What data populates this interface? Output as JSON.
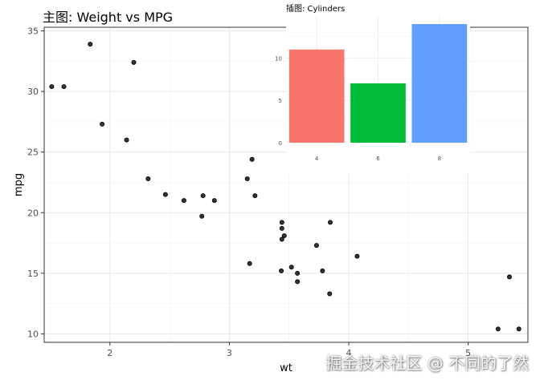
{
  "chart_data": [
    {
      "type": "scatter",
      "title": "主图: Weight vs MPG",
      "xlabel": "wt",
      "ylabel": "mpg",
      "xlim": [
        1.45,
        5.5
      ],
      "ylim": [
        9.3,
        35.3
      ],
      "xticks": [
        2,
        3,
        4,
        5
      ],
      "yticks": [
        10,
        15,
        20,
        25,
        30,
        35
      ],
      "grid": true,
      "point_color": "#333333",
      "points": [
        {
          "x": 1.513,
          "y": 30.4
        },
        {
          "x": 1.615,
          "y": 30.4
        },
        {
          "x": 1.835,
          "y": 33.9
        },
        {
          "x": 1.935,
          "y": 27.3
        },
        {
          "x": 2.14,
          "y": 26.0
        },
        {
          "x": 2.2,
          "y": 32.4
        },
        {
          "x": 2.32,
          "y": 22.8
        },
        {
          "x": 2.465,
          "y": 21.5
        },
        {
          "x": 2.62,
          "y": 21.0
        },
        {
          "x": 2.77,
          "y": 19.7
        },
        {
          "x": 2.78,
          "y": 21.4
        },
        {
          "x": 2.875,
          "y": 21.0
        },
        {
          "x": 3.15,
          "y": 22.8
        },
        {
          "x": 3.17,
          "y": 15.8
        },
        {
          "x": 3.19,
          "y": 24.4
        },
        {
          "x": 3.215,
          "y": 21.4
        },
        {
          "x": 3.435,
          "y": 15.2
        },
        {
          "x": 3.44,
          "y": 18.7
        },
        {
          "x": 3.44,
          "y": 19.2
        },
        {
          "x": 3.44,
          "y": 17.8
        },
        {
          "x": 3.46,
          "y": 18.1
        },
        {
          "x": 3.52,
          "y": 15.5
        },
        {
          "x": 3.57,
          "y": 15.0
        },
        {
          "x": 3.57,
          "y": 14.3
        },
        {
          "x": 3.73,
          "y": 17.3
        },
        {
          "x": 3.78,
          "y": 15.2
        },
        {
          "x": 3.84,
          "y": 13.3
        },
        {
          "x": 3.845,
          "y": 19.2
        },
        {
          "x": 4.07,
          "y": 16.4
        },
        {
          "x": 5.25,
          "y": 10.4
        },
        {
          "x": 5.345,
          "y": 14.7
        },
        {
          "x": 5.424,
          "y": 10.4
        }
      ]
    },
    {
      "type": "bar",
      "title": "插图: Cylinders",
      "categories": [
        "4",
        "6",
        "8"
      ],
      "values": [
        11,
        7,
        14
      ],
      "colors": [
        "#F8766D",
        "#00BA38",
        "#619CFF"
      ],
      "ylim": [
        0,
        14
      ],
      "yticks": [
        0,
        5,
        10
      ]
    }
  ],
  "watermark": "掘金技术社区 @ 不同的了然"
}
